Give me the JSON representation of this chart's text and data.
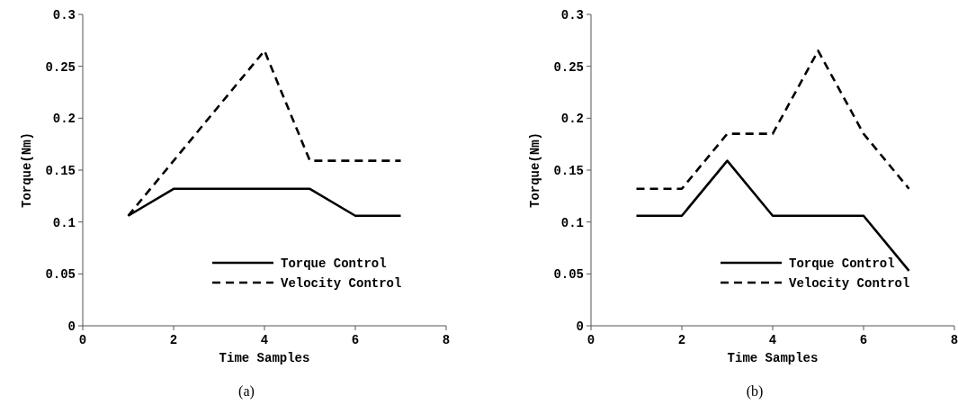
{
  "chart_data": [
    {
      "type": "line",
      "xlabel": "Time Samples",
      "ylabel": "Torque(Nm)",
      "annotations": [
        "(a)"
      ],
      "x": [
        1,
        2,
        3,
        4,
        5,
        6,
        7
      ],
      "xlim": [
        0,
        8
      ],
      "xticks": [
        0,
        2,
        4,
        6,
        8
      ],
      "ylim": [
        0,
        0.3
      ],
      "yticks": [
        0,
        0.05,
        0.1,
        0.15,
        0.2,
        0.25,
        0.3
      ],
      "legend": "bottom right",
      "series": [
        {
          "name": "Torque Control",
          "color": "#000000",
          "line_style": "solid",
          "values": [
            0.106,
            0.132,
            0.132,
            0.132,
            0.132,
            0.106,
            0.106
          ]
        },
        {
          "name": "Velocity Control",
          "color": "#000000",
          "line_style": "dashed",
          "values": [
            0.106,
            0.159,
            0.212,
            0.265,
            0.159,
            0.159,
            0.159
          ]
        }
      ]
    },
    {
      "type": "line",
      "xlabel": "Time Samples",
      "ylabel": "Torque(Nm)",
      "annotations": [
        "(b)"
      ],
      "x": [
        1,
        2,
        3,
        4,
        5,
        6,
        7
      ],
      "xlim": [
        0,
        8
      ],
      "xticks": [
        0,
        2,
        4,
        6,
        8
      ],
      "ylim": [
        0,
        0.3
      ],
      "yticks": [
        0,
        0.05,
        0.1,
        0.15,
        0.2,
        0.25,
        0.3
      ],
      "legend": "bottom right",
      "series": [
        {
          "name": "Torque Control",
          "color": "#000000",
          "line_style": "solid",
          "values": [
            0.106,
            0.106,
            0.159,
            0.106,
            0.106,
            0.106,
            0.053
          ]
        },
        {
          "name": "Velocity Control",
          "color": "#000000",
          "line_style": "dashed",
          "values": [
            0.132,
            0.132,
            0.185,
            0.185,
            0.265,
            0.185,
            0.132
          ]
        }
      ]
    }
  ]
}
